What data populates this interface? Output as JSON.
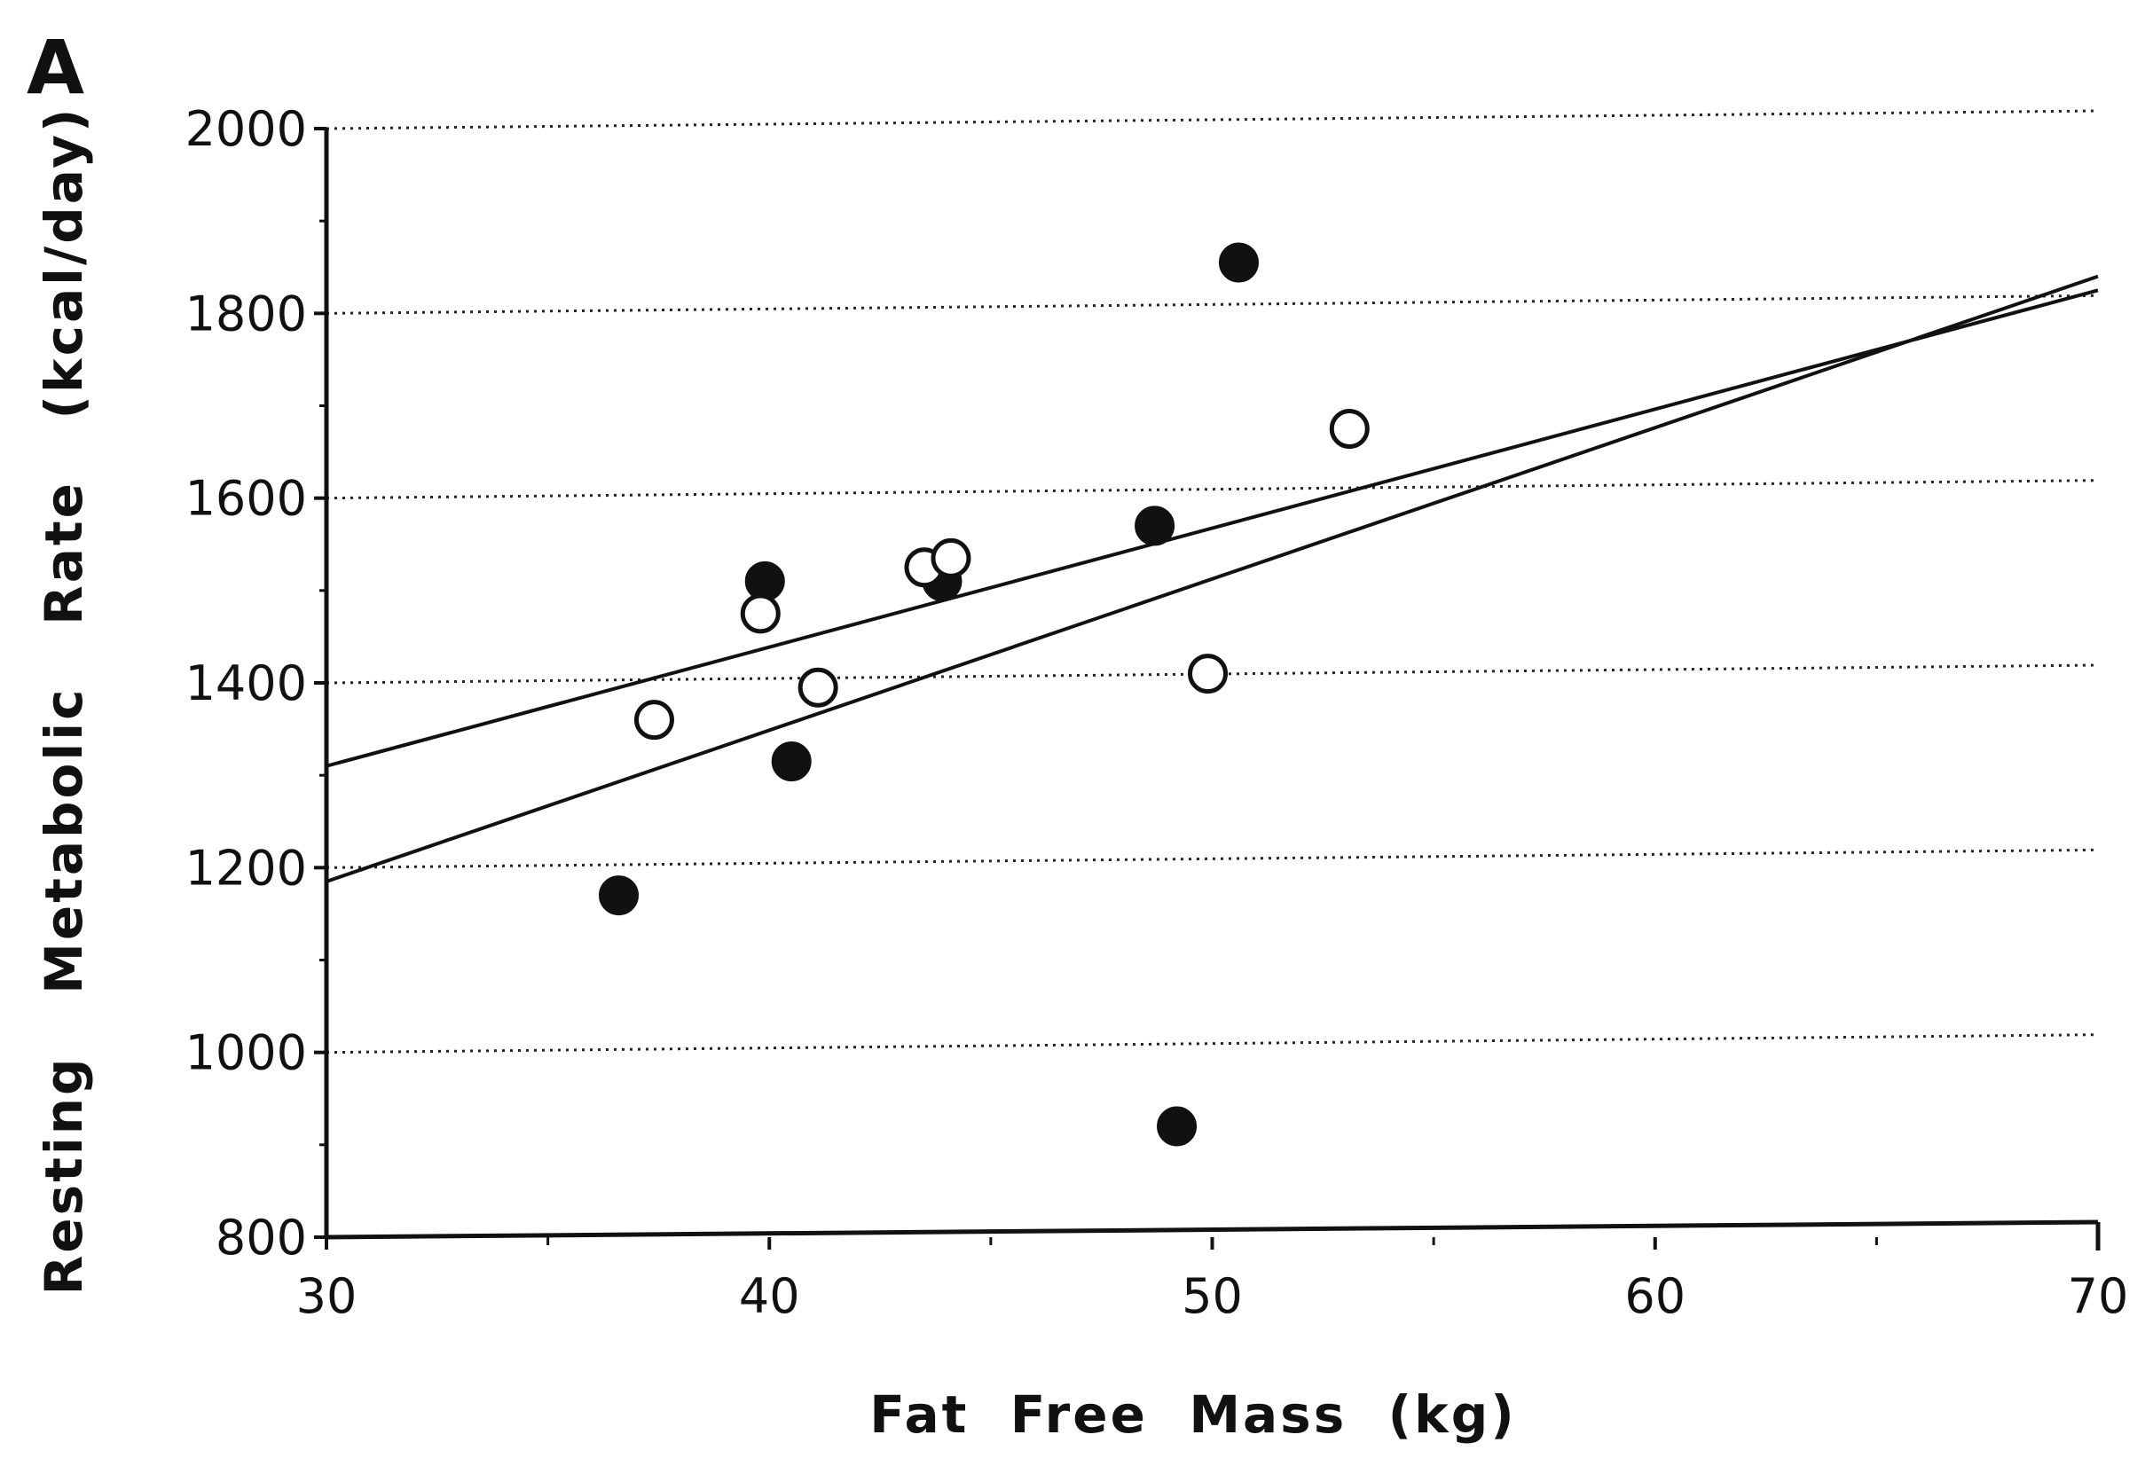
{
  "chart_data": {
    "type": "scatter",
    "panel_label": "A",
    "xlabel": "Fat  Free  Mass  (kg)",
    "ylabel": "Resting   Metabolic   Rate   (kcal/day)",
    "xlim": [
      30,
      70
    ],
    "ylim": [
      800,
      2000
    ],
    "x_ticks": [
      "30",
      "40",
      "50",
      "60",
      "70"
    ],
    "y_ticks": [
      "800",
      "1000",
      "1200",
      "1400",
      "1600",
      "1800",
      "2000"
    ],
    "grid": "horizontal, dotted",
    "marker_colors": {
      "filled": "#111111",
      "open": "#ffffff",
      "line": "#111111"
    },
    "series": [
      {
        "marker": "filled-circle",
        "points": [
          {
            "x": 36.6,
            "y": 1170
          },
          {
            "x": 39.9,
            "y": 1510
          },
          {
            "x": 40.5,
            "y": 1315
          },
          {
            "x": 43.9,
            "y": 1510
          },
          {
            "x": 48.7,
            "y": 1570
          },
          {
            "x": 49.2,
            "y": 920
          },
          {
            "x": 50.6,
            "y": 1855
          }
        ]
      },
      {
        "marker": "open-circle",
        "points": [
          {
            "x": 37.4,
            "y": 1360
          },
          {
            "x": 39.8,
            "y": 1475
          },
          {
            "x": 41.1,
            "y": 1395
          },
          {
            "x": 43.5,
            "y": 1525
          },
          {
            "x": 44.1,
            "y": 1535
          },
          {
            "x": 49.9,
            "y": 1410
          },
          {
            "x": 53.1,
            "y": 1675
          }
        ]
      }
    ],
    "regression_lines": [
      {
        "x": [
          30,
          70
        ],
        "y": [
          1310,
          1825
        ]
      },
      {
        "x": [
          30,
          70
        ],
        "y": [
          1185,
          1840
        ]
      }
    ]
  }
}
